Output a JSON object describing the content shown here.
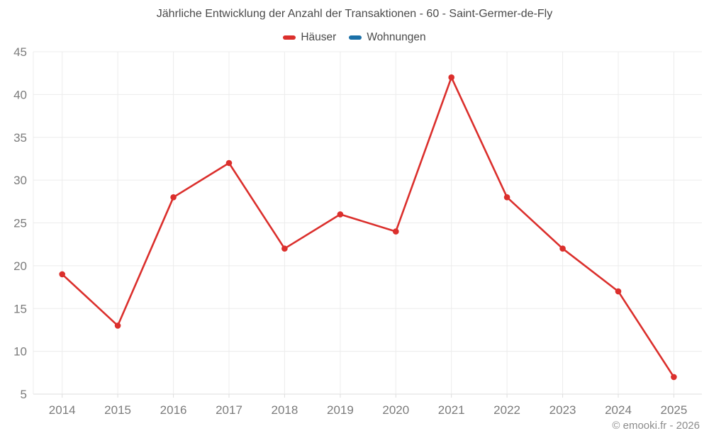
{
  "chart_data": {
    "type": "line",
    "title": "Jährliche Entwicklung der Anzahl der Transaktionen - 60 - Saint-Germer-de-Fly",
    "categories": [
      "2014",
      "2015",
      "2016",
      "2017",
      "2018",
      "2019",
      "2020",
      "2021",
      "2022",
      "2023",
      "2024",
      "2025"
    ],
    "series": [
      {
        "name": "Häuser",
        "color": "#db2f2c",
        "values": [
          19,
          13,
          28,
          32,
          22,
          26,
          24,
          42,
          28,
          22,
          17,
          7
        ]
      },
      {
        "name": "Wohnungen",
        "color": "#1b70a8",
        "values": []
      }
    ],
    "xlabel": "",
    "ylabel": "",
    "ylim": [
      5,
      45
    ],
    "ytick_step": 5,
    "yticks": [
      5,
      10,
      15,
      20,
      25,
      30,
      35,
      40,
      45
    ],
    "grid": true,
    "legend_position": "top"
  },
  "colors": {
    "grid": "#ececec",
    "axis": "#dcdcdc",
    "tick_label": "#7b7b7b",
    "title": "#4a4a4a"
  },
  "footer": {
    "copyright": "© emooki.fr - 2026"
  }
}
